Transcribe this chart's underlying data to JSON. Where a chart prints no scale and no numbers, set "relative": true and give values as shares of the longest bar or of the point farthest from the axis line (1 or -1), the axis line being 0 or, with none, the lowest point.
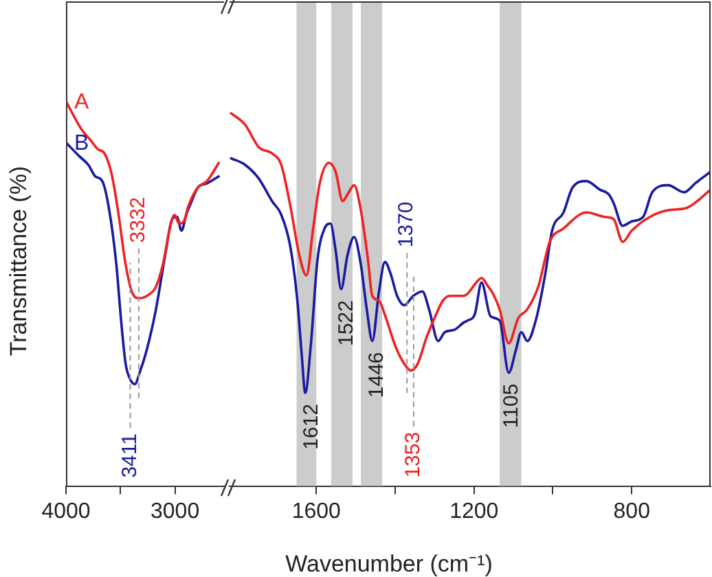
{
  "chart_data": [
    {
      "type": "line",
      "ylabel": "Transmittance (%)",
      "relative": true,
      "legend": false,
      "grid": false,
      "xlim": [
        4000,
        2550
      ],
      "xticks": [
        4000,
        {
          "value": 3500,
          "label": null
        },
        3000
      ],
      "series": [
        {
          "name": "A",
          "color": "#ee2222",
          "x": [
            4000,
            3859,
            3774,
            3709,
            3645,
            3581,
            3517,
            3453,
            3388,
            3324,
            3260,
            3175,
            3111,
            3047,
            3004,
            2962,
            2919,
            2876,
            2791,
            2705,
            2599
          ],
          "values": [
            1.0,
            0.928,
            0.899,
            0.876,
            0.864,
            0.811,
            0.705,
            0.576,
            0.5,
            0.488,
            0.494,
            0.518,
            0.576,
            0.67,
            0.705,
            0.682,
            0.688,
            0.729,
            0.776,
            0.793,
            0.84
          ]
        },
        {
          "name": "B",
          "color": "#1a1aa0",
          "x": [
            4000,
            3880,
            3795,
            3731,
            3667,
            3603,
            3538,
            3496,
            3453,
            3410,
            3368,
            3324,
            3260,
            3175,
            3090,
            3026,
            2983,
            2940,
            2897,
            2855,
            2791,
            2705,
            2599
          ],
          "values": [
            0.893,
            0.858,
            0.835,
            0.805,
            0.793,
            0.717,
            0.576,
            0.436,
            0.318,
            0.277,
            0.265,
            0.295,
            0.353,
            0.459,
            0.6,
            0.694,
            0.7,
            0.664,
            0.705,
            0.735,
            0.776,
            0.787,
            0.805
          ]
        }
      ],
      "ref_lines": [
        {
          "axis": "x",
          "value": 3411,
          "label": "3411",
          "color": "#999999",
          "line_style": "dashed"
        },
        {
          "axis": "x",
          "value": 3332,
          "label": "3332",
          "color": "#999999",
          "line_style": "dashed"
        }
      ]
    },
    {
      "type": "line",
      "xlabel": "Wavenumber (cm⁻¹)",
      "relative": true,
      "legend": false,
      "grid": false,
      "xlim": [
        1820,
        600
      ],
      "xticks": [
        1600,
        {
          "value": 1400,
          "label": null
        },
        1200,
        {
          "value": 1000,
          "label": null
        },
        800
      ],
      "series": [
        {
          "color": "#ee2222",
          "x": [
            1816,
            1781,
            1746,
            1712,
            1689,
            1666,
            1643,
            1625,
            1608,
            1591,
            1568,
            1551,
            1533,
            1521,
            1504,
            1487,
            1469,
            1458,
            1441,
            1423,
            1400,
            1377,
            1360,
            1343,
            1320,
            1296,
            1279,
            1262,
            1227,
            1216,
            1198,
            1181,
            1164,
            1152,
            1135,
            1112,
            1088,
            1065,
            1037,
            1008,
            973,
            915,
            869,
            846,
            823,
            800,
            754,
            708,
            661,
            600
          ],
          "values": [
            1.0,
            0.97,
            0.909,
            0.892,
            0.862,
            0.752,
            0.619,
            0.565,
            0.691,
            0.813,
            0.867,
            0.843,
            0.764,
            0.782,
            0.807,
            0.74,
            0.607,
            0.51,
            0.497,
            0.45,
            0.377,
            0.328,
            0.31,
            0.328,
            0.4,
            0.461,
            0.497,
            0.51,
            0.51,
            0.516,
            0.541,
            0.558,
            0.535,
            0.516,
            0.474,
            0.383,
            0.45,
            0.474,
            0.535,
            0.655,
            0.691,
            0.734,
            0.722,
            0.716,
            0.655,
            0.685,
            0.722,
            0.74,
            0.746,
            0.795
          ]
        },
        {
          "color": "#1a1aa0",
          "x": [
            1816,
            1781,
            1746,
            1712,
            1689,
            1666,
            1648,
            1637,
            1628,
            1614,
            1597,
            1579,
            1564,
            1551,
            1537,
            1521,
            1504,
            1487,
            1472,
            1458,
            1441,
            1426,
            1412,
            1395,
            1377,
            1354,
            1331,
            1314,
            1291,
            1274,
            1250,
            1227,
            1216,
            1198,
            1181,
            1158,
            1135,
            1112,
            1094,
            1080,
            1065,
            1042,
            1019,
            1002,
            973,
            950,
            915,
            881,
            858,
            846,
            823,
            800,
            771,
            748,
            708,
            667,
            638,
            600
          ],
          "values": [
            0.879,
            0.862,
            0.825,
            0.764,
            0.728,
            0.643,
            0.497,
            0.353,
            0.25,
            0.377,
            0.607,
            0.691,
            0.704,
            0.632,
            0.528,
            0.619,
            0.668,
            0.594,
            0.474,
            0.389,
            0.522,
            0.601,
            0.571,
            0.51,
            0.485,
            0.51,
            0.522,
            0.474,
            0.389,
            0.413,
            0.419,
            0.438,
            0.444,
            0.461,
            0.546,
            0.455,
            0.444,
            0.304,
            0.364,
            0.413,
            0.389,
            0.45,
            0.571,
            0.685,
            0.734,
            0.801,
            0.818,
            0.795,
            0.782,
            0.759,
            0.698,
            0.71,
            0.722,
            0.788,
            0.807,
            0.788,
            0.813,
            0.843
          ]
        }
      ],
      "bands": [
        {
          "axis": "x",
          "from": 1650,
          "to": 1600,
          "color": "#cccccc"
        },
        {
          "axis": "x",
          "from": 1562,
          "to": 1508,
          "color": "#cccccc"
        },
        {
          "axis": "x",
          "from": 1487,
          "to": 1433,
          "color": "#cccccc"
        },
        {
          "axis": "x",
          "from": 1135,
          "to": 1080,
          "color": "#cccccc"
        }
      ],
      "ref_lines": [
        {
          "axis": "x",
          "value": 1370,
          "label": "1370",
          "color": "#999999",
          "line_style": "dashed"
        },
        {
          "axis": "x",
          "value": 1353,
          "label": "1353",
          "color": "#999999",
          "line_style": "dashed"
        }
      ],
      "annotations": [
        {
          "text": "1612",
          "x": 1612,
          "y": 0.25
        },
        {
          "text": "1522",
          "x": 1522,
          "y": 0.528
        },
        {
          "text": "1446",
          "x": 1446,
          "y": 0.389
        },
        {
          "text": "1105",
          "x": 1105,
          "y": 0.304
        }
      ]
    }
  ]
}
